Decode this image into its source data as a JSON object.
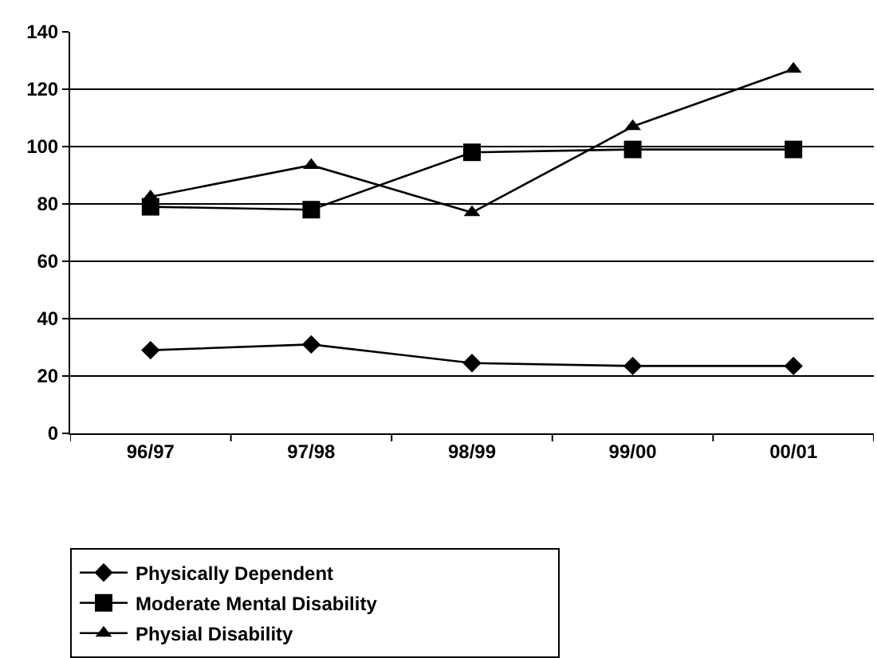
{
  "chart_data": {
    "type": "line",
    "categories": [
      "96/97",
      "97/98",
      "98/99",
      "99/00",
      "00/01"
    ],
    "series": [
      {
        "name": "Physically Dependent",
        "color": "#000000",
        "marker": "diamond",
        "values": [
          29,
          31,
          24.5,
          23.5,
          23.5
        ]
      },
      {
        "name": "Moderate Mental Disability",
        "color": "#000000",
        "marker": "square",
        "values": [
          79,
          78,
          98,
          99,
          99
        ]
      },
      {
        "name": "Physial Disability",
        "color": "#000000",
        "marker": "triangle",
        "values": [
          82.5,
          93.5,
          77,
          107,
          127
        ]
      }
    ],
    "ylim": [
      0,
      140
    ],
    "yticks": [
      0,
      20,
      40,
      60,
      80,
      100,
      120,
      140
    ],
    "grid": "y",
    "legend": "bottom",
    "line_style": "solid"
  }
}
